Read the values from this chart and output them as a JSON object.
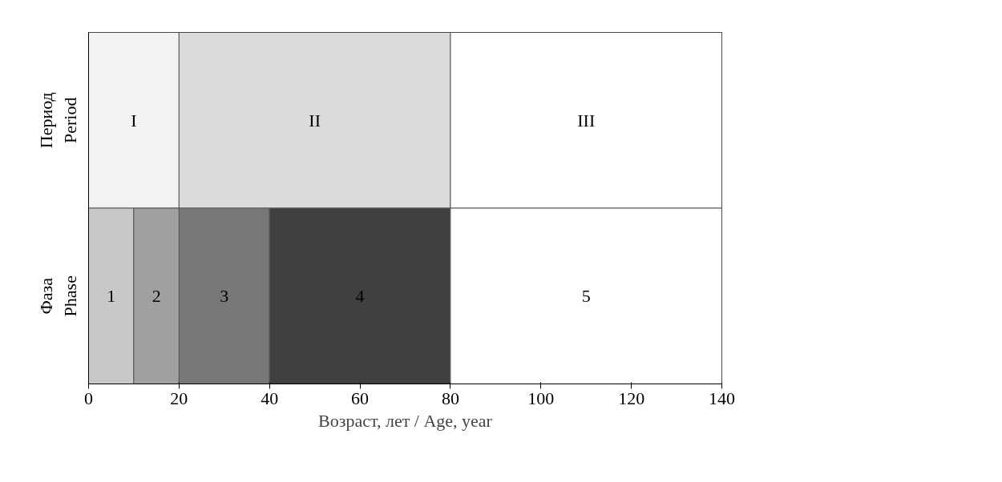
{
  "chart_data": {
    "type": "bar",
    "orientation": "horizontal",
    "stacked": true,
    "categories": [
      "Период\nPeriod",
      "Фаза\nPhase"
    ],
    "series": [
      {
        "name": "I",
        "color": "#f2f2f2",
        "values": [
          20,
          null
        ]
      },
      {
        "name": "II",
        "color": "#dcdcdc",
        "values": [
          60,
          null
        ]
      },
      {
        "name": "III",
        "color": "#ffffff",
        "values": [
          60,
          null
        ]
      },
      {
        "name": "1",
        "color": "#c8c8c8",
        "values": [
          null,
          10
        ]
      },
      {
        "name": "2",
        "color": "#a0a0a0",
        "values": [
          null,
          10
        ]
      },
      {
        "name": "3",
        "color": "#787878",
        "values": [
          null,
          20
        ]
      },
      {
        "name": "4",
        "color": "#404040",
        "values": [
          null,
          40
        ]
      },
      {
        "name": "5",
        "color": "#ffffff",
        "values": [
          null,
          60
        ]
      }
    ],
    "xlim": [
      0,
      140
    ],
    "xticks": [
      0,
      20,
      40,
      60,
      80,
      100,
      120,
      140
    ],
    "xlabel": "Возраст, лет / Age, year",
    "grid": false,
    "legend": false
  }
}
